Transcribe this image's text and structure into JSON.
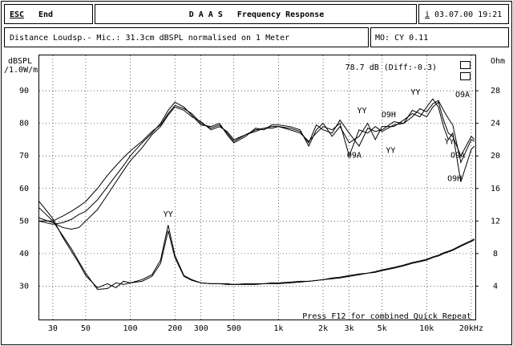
{
  "header": {
    "key": "ESC",
    "action": "End",
    "title": "D A A S   Frequency Response",
    "info_icon": "i",
    "datetime": "03.07.00 19:21"
  },
  "info": {
    "distance": "Distance Loudsp.- Mic.: 31.3cm dBSPL normalised on 1 Meter",
    "mode": "MO: CY 0.11"
  },
  "chart_data": {
    "type": "line",
    "ylabel": "dBSPL",
    "ylabel_unit": "/1.0W/m",
    "y2label": "Ohm",
    "readout": "78.7 dB (Diff:-0.3)",
    "footer": "Press F12 for combined Quick Repeat",
    "log_x": true,
    "grid": true,
    "xlim": [
      24,
      21300
    ],
    "xticks": [
      30,
      50,
      100,
      200,
      300,
      500,
      {
        "value": 1000,
        "label": "1k"
      },
      {
        "value": 2000,
        "label": "2k"
      },
      {
        "value": 3000,
        "label": "3k"
      },
      {
        "value": 5000,
        "label": "5k"
      },
      {
        "value": 10000,
        "label": "10k"
      },
      {
        "value": 20000,
        "label": "20kHz"
      }
    ],
    "ylim": [
      20,
      100
    ],
    "yticks": [
      30,
      40,
      50,
      60,
      70,
      80,
      90
    ],
    "y2lim": [
      0,
      32
    ],
    "y2ticks": [
      4,
      8,
      12,
      16,
      20,
      24,
      28
    ],
    "x": [
      24,
      30,
      35,
      40,
      45,
      50,
      60,
      70,
      80,
      90,
      100,
      120,
      140,
      160,
      180,
      200,
      230,
      260,
      300,
      350,
      400,
      450,
      500,
      600,
      700,
      800,
      900,
      1000,
      1200,
      1400,
      1600,
      1800,
      2000,
      2300,
      2600,
      3000,
      3500,
      4000,
      4500,
      5000,
      6000,
      7000,
      8000,
      9000,
      10000,
      11000,
      12000,
      13000,
      14000,
      15000,
      17000,
      20000,
      21000
    ],
    "series": [
      {
        "color": "#000000",
        "values": [
          50,
          50,
          51.5,
          53,
          54.5,
          56,
          60,
          64,
          67,
          69.5,
          71.5,
          74.5,
          77.5,
          79.5,
          83,
          85.5,
          84.5,
          83,
          80,
          78.5,
          79.5,
          77,
          74.5,
          76.5,
          78,
          78.5,
          79,
          79,
          78.5,
          77.5,
          74,
          79.5,
          78,
          77,
          81,
          77,
          73,
          78.5,
          77.5,
          78,
          80.5,
          80,
          82,
          84.5,
          83.5,
          86,
          87,
          84,
          81.5,
          79.5,
          68,
          75,
          74.5
        ]
      },
      {
        "color": "#000000",
        "values": [
          50,
          49,
          49.5,
          50.5,
          52,
          53,
          56.5,
          60.5,
          64,
          67,
          70,
          74,
          77,
          80,
          84,
          86.5,
          85,
          82.5,
          79.5,
          79,
          80,
          76.5,
          74,
          76,
          78.5,
          78,
          79.5,
          79.5,
          79,
          78,
          73,
          78,
          80,
          76,
          79,
          74,
          76,
          80,
          75,
          79,
          79,
          81,
          83,
          82,
          85,
          87.5,
          85,
          79,
          75,
          77,
          62,
          72,
          73
        ]
      },
      {
        "color": "#000000",
        "values": [
          51,
          49.5,
          48,
          47.5,
          48,
          50,
          53.5,
          58,
          62,
          65.5,
          68.5,
          72.5,
          76.5,
          79,
          82.5,
          85,
          84,
          82,
          80.5,
          78,
          79,
          77.5,
          75,
          76.5,
          77.5,
          78.5,
          78.5,
          79,
          78,
          77,
          74.5,
          77,
          79,
          78,
          80,
          70,
          78,
          77,
          79,
          77.5,
          79.5,
          80,
          84,
          83,
          82,
          85,
          86.5,
          81,
          77,
          76,
          70,
          76,
          75
        ]
      },
      {
        "color": "#000000",
        "axis": "y2",
        "values": [
          13.7,
          12,
          10.2,
          8.6,
          7,
          5.6,
          3.6,
          3.7,
          4.4,
          4.2,
          4.4,
          4.6,
          5.2,
          6.8,
          10.8,
          7.5,
          5.2,
          4.7,
          4.4,
          4.3,
          4.3,
          4.2,
          4.2,
          4.2,
          4.2,
          4.3,
          4.3,
          4.3,
          4.4,
          4.5,
          4.6,
          4.7,
          4.8,
          4.9,
          5,
          5.2,
          5.4,
          5.6,
          5.7,
          5.9,
          6.2,
          6.5,
          6.8,
          7,
          7.2,
          7.5,
          7.7,
          8,
          8.2,
          8.4,
          8.9,
          9.5,
          9.7
        ]
      },
      {
        "color": "#000000",
        "axis": "y2",
        "values": [
          14.5,
          12.3,
          10,
          8.3,
          6.8,
          5.3,
          3.8,
          4.3,
          3.8,
          4.6,
          4.4,
          4.8,
          5.4,
          7.2,
          11.5,
          7.8,
          5.3,
          4.8,
          4.4,
          4.3,
          4.3,
          4.3,
          4.2,
          4.3,
          4.3,
          4.3,
          4.4,
          4.4,
          4.5,
          4.6,
          4.6,
          4.7,
          4.8,
          5,
          5.1,
          5.3,
          5.5,
          5.6,
          5.8,
          6,
          6.3,
          6.6,
          6.9,
          7.1,
          7.3,
          7.6,
          7.8,
          8.1,
          8.3,
          8.5,
          9,
          9.6,
          9.8
        ]
      }
    ],
    "annotations": [
      {
        "text": "YY",
        "x": 167,
        "y": 52
      },
      {
        "text": "YY",
        "x": 3390,
        "y": 83.8
      },
      {
        "text": "O9H",
        "x": 4950,
        "y": 82.6
      },
      {
        "text": "YY",
        "x": 7800,
        "y": 89.5
      },
      {
        "text": "O9A",
        "x": 15600,
        "y": 88.8
      },
      {
        "text": "O9A",
        "x": 2900,
        "y": 70.2
      },
      {
        "text": "YY",
        "x": 5300,
        "y": 71.7
      },
      {
        "text": "YY",
        "x": 13200,
        "y": 74.4
      },
      {
        "text": "O9A",
        "x": 14500,
        "y": 70.2
      },
      {
        "text": "O9H",
        "x": 13800,
        "y": 63
      }
    ]
  }
}
